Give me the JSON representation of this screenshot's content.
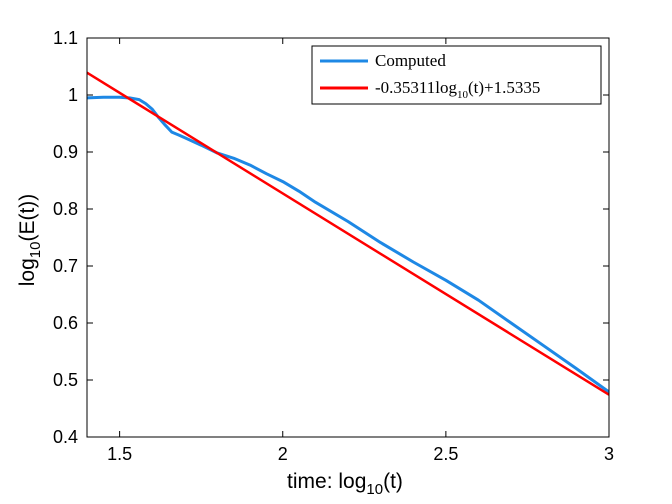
{
  "chart_data": {
    "type": "line",
    "xlabel_main": "time: log",
    "xlabel_sub": "10",
    "xlabel_tail": "(t)",
    "ylabel_main": "log",
    "ylabel_sub": "10",
    "ylabel_tail": "(E(t))",
    "xlim": [
      1.4,
      3.0
    ],
    "ylim": [
      0.4,
      1.1
    ],
    "xticks": [
      1.5,
      2,
      2.5,
      3
    ],
    "xtick_labels": [
      "1.5",
      "2",
      "2.5",
      "3"
    ],
    "yticks": [
      0.4,
      0.5,
      0.6,
      0.7,
      0.8,
      0.9,
      1.0,
      1.1
    ],
    "ytick_labels": [
      "0.4",
      "0.5",
      "0.6",
      "0.7",
      "0.8",
      "0.9",
      "1",
      "1.1"
    ],
    "grid": false,
    "legend_position": "top-right",
    "series": [
      {
        "name": "Computed",
        "color": "#1e88e5",
        "x": [
          1.4,
          1.45,
          1.5,
          1.53,
          1.56,
          1.58,
          1.6,
          1.62,
          1.64,
          1.66,
          1.68,
          1.7,
          1.75,
          1.8,
          1.85,
          1.9,
          1.95,
          2.0,
          2.05,
          2.1,
          2.2,
          2.3,
          2.4,
          2.5,
          2.6,
          2.7,
          2.8,
          2.9,
          3.0
        ],
        "y": [
          0.995,
          0.996,
          0.996,
          0.995,
          0.992,
          0.985,
          0.975,
          0.96,
          0.947,
          0.935,
          0.93,
          0.925,
          0.912,
          0.898,
          0.889,
          0.877,
          0.862,
          0.848,
          0.831,
          0.812,
          0.778,
          0.741,
          0.707,
          0.675,
          0.64,
          0.6,
          0.56,
          0.52,
          0.479
        ]
      },
      {
        "name_prefix": "-0.35311log",
        "name_sub": "10",
        "name_suffix": "(t)+1.5335",
        "color": "#ff0000",
        "slope": -0.35311,
        "intercept": 1.5335,
        "x": [
          1.4,
          3.0
        ]
      }
    ]
  }
}
